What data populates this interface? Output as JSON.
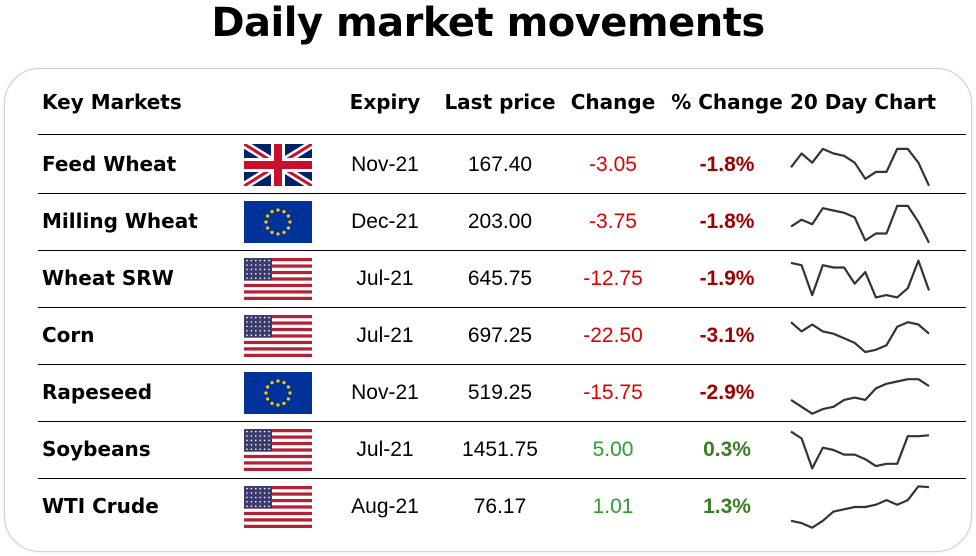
{
  "title": "Daily market movements",
  "headers": {
    "market": "Key Markets",
    "expiry": "Expiry",
    "last_price": "Last price",
    "change": "Change",
    "pct_change": "% Change",
    "chart": "20 Day Chart"
  },
  "colors": {
    "negative_change": "#e00000",
    "negative_pct": "#a00000",
    "positive_change": "#2e9e2e",
    "positive_pct": "#3a7d22",
    "sparkline": "#333333"
  },
  "rows": [
    {
      "market": "Feed Wheat",
      "flag": "uk-flag",
      "expiry": "Nov-21",
      "last_price": "167.40",
      "change": "-3.05",
      "pct_change": "-1.8%",
      "direction": "down",
      "spark": [
        0.45,
        0.75,
        0.55,
        0.85,
        0.75,
        0.7,
        0.55,
        0.2,
        0.35,
        0.35,
        0.85,
        0.85,
        0.55,
        0.05
      ]
    },
    {
      "market": "Milling Wheat",
      "flag": "eu-flag",
      "expiry": "Dec-21",
      "last_price": "203.00",
      "change": "-3.75",
      "pct_change": "-1.8%",
      "direction": "down",
      "spark": [
        0.4,
        0.55,
        0.45,
        0.8,
        0.75,
        0.7,
        0.6,
        0.1,
        0.25,
        0.25,
        0.85,
        0.85,
        0.5,
        0.05
      ]
    },
    {
      "market": "Wheat SRW",
      "flag": "us-flag",
      "expiry": "Jul-21",
      "last_price": "645.75",
      "change": "-12.75",
      "pct_change": "-1.9%",
      "direction": "down",
      "spark": [
        0.85,
        0.8,
        0.15,
        0.8,
        0.75,
        0.75,
        0.4,
        0.65,
        0.1,
        0.15,
        0.1,
        0.3,
        0.9,
        0.25
      ]
    },
    {
      "market": "Corn",
      "flag": "us-flag",
      "expiry": "Jul-21",
      "last_price": "697.25",
      "change": "-22.50",
      "pct_change": "-3.1%",
      "direction": "down",
      "spark": [
        0.8,
        0.6,
        0.75,
        0.6,
        0.55,
        0.45,
        0.35,
        0.15,
        0.2,
        0.3,
        0.7,
        0.8,
        0.75,
        0.55
      ]
    },
    {
      "market": "Rapeseed",
      "flag": "eu-flag",
      "expiry": "Nov-21",
      "last_price": "519.25",
      "change": "-15.75",
      "pct_change": "-2.9%",
      "direction": "down",
      "spark": [
        0.35,
        0.2,
        0.05,
        0.15,
        0.2,
        0.35,
        0.4,
        0.35,
        0.6,
        0.7,
        0.75,
        0.8,
        0.8,
        0.65
      ]
    },
    {
      "market": "Soybeans",
      "flag": "us-flag",
      "expiry": "Jul-21",
      "last_price": "1451.75",
      "change": "5.00",
      "pct_change": "0.3%",
      "direction": "up",
      "spark": [
        0.9,
        0.75,
        0.1,
        0.55,
        0.5,
        0.4,
        0.4,
        0.3,
        0.15,
        0.2,
        0.2,
        0.8,
        0.8,
        0.82
      ]
    },
    {
      "market": "WTI Crude",
      "flag": "us-flag",
      "expiry": "Aug-21",
      "last_price": "76.17",
      "change": "1.01",
      "pct_change": "1.3%",
      "direction": "up",
      "spark": [
        0.2,
        0.15,
        0.05,
        0.2,
        0.4,
        0.45,
        0.5,
        0.5,
        0.55,
        0.65,
        0.55,
        0.65,
        0.95,
        0.93
      ]
    }
  ]
}
